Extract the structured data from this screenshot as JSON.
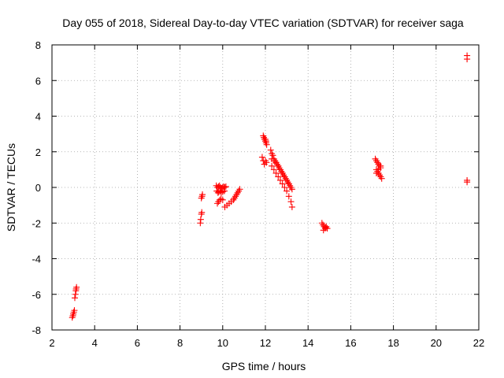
{
  "chart_data": {
    "type": "scatter",
    "title": "Day 055 of 2018, Sidereal Day-to-day VTEC variation (SDTVAR) for receiver saga",
    "xlabel": "GPS time / hours",
    "ylabel": "SDTVAR / TECUs",
    "xlim": [
      2,
      22
    ],
    "ylim": [
      -8,
      8
    ],
    "xticks": [
      2,
      4,
      6,
      8,
      10,
      12,
      14,
      16,
      18,
      20,
      22
    ],
    "yticks": [
      -8,
      -6,
      -4,
      -2,
      0,
      2,
      4,
      6,
      8
    ],
    "grid": true,
    "marker": "+",
    "color": "#ff0000",
    "x": [
      2.95,
      2.98,
      3.0,
      3.02,
      3.05,
      3.07,
      3.1,
      3.12,
      3.13,
      3.15,
      8.95,
      8.97,
      9.0,
      9.02,
      9.03,
      9.0,
      9.05,
      9.7,
      9.75,
      9.8,
      9.85,
      9.9,
      9.95,
      10.0,
      10.05,
      10.1,
      10.15,
      9.72,
      9.78,
      9.82,
      9.88,
      9.93,
      10.0,
      10.08,
      9.75,
      9.8,
      9.86,
      9.92,
      10.0,
      10.1,
      10.2,
      10.3,
      10.4,
      10.5,
      10.55,
      10.6,
      10.65,
      10.7,
      10.75,
      10.8,
      11.9,
      11.93,
      11.96,
      12.0,
      12.03,
      12.06,
      12.0,
      12.03,
      11.85,
      11.9,
      11.95,
      12.0,
      12.05,
      12.25,
      12.3,
      12.35,
      12.4,
      12.45,
      12.5,
      12.55,
      12.6,
      12.65,
      12.7,
      12.75,
      12.8,
      12.85,
      12.9,
      12.95,
      13.0,
      13.05,
      13.1,
      13.15,
      13.2,
      12.3,
      12.4,
      12.5,
      12.6,
      12.7,
      12.8,
      12.9,
      13.0,
      13.1,
      13.2,
      13.25,
      12.3,
      12.4,
      12.5,
      12.6,
      12.7,
      12.8,
      12.9,
      13.0,
      13.1,
      13.2,
      13.25,
      14.65,
      14.7,
      14.75,
      14.8,
      14.85,
      14.9,
      14.72,
      14.82,
      17.15,
      17.2,
      17.25,
      17.3,
      17.35,
      17.4,
      17.2,
      17.25,
      17.3,
      17.35,
      17.4,
      17.45,
      17.2,
      17.3,
      17.4,
      21.45,
      21.45,
      21.45,
      21.45
    ],
    "y": [
      -7.3,
      -7.2,
      -7.1,
      -7.0,
      -6.9,
      -6.2,
      -6.0,
      -5.8,
      -5.7,
      -5.6,
      -2.0,
      -1.8,
      -1.5,
      -1.4,
      -0.5,
      -0.6,
      -0.4,
      0.1,
      0.0,
      0.05,
      0.1,
      0.0,
      -0.05,
      0.0,
      0.05,
      0.0,
      0.05,
      -0.2,
      -0.3,
      -0.25,
      -0.2,
      -0.3,
      -0.25,
      -0.2,
      -0.9,
      -0.8,
      -0.7,
      -0.65,
      -0.7,
      -1.1,
      -1.0,
      -0.9,
      -0.8,
      -0.7,
      -0.6,
      -0.5,
      -0.4,
      -0.3,
      -0.2,
      -0.1,
      2.9,
      2.8,
      2.7,
      2.6,
      2.5,
      2.4,
      2.7,
      2.6,
      1.7,
      1.5,
      1.3,
      1.5,
      1.4,
      2.1,
      1.9,
      1.8,
      1.6,
      1.5,
      1.4,
      1.3,
      1.2,
      1.1,
      1.0,
      0.9,
      0.8,
      0.7,
      0.6,
      0.5,
      0.4,
      0.3,
      0.2,
      0.1,
      0.0,
      1.2,
      1.0,
      0.8,
      0.6,
      0.4,
      0.2,
      0.0,
      -0.2,
      -0.5,
      -0.8,
      -1.1,
      1.6,
      1.5,
      1.4,
      1.2,
      1.0,
      0.8,
      0.6,
      0.4,
      0.2,
      0.0,
      -0.1,
      -2.0,
      -2.1,
      -2.2,
      -2.3,
      -2.2,
      -2.3,
      -2.4,
      -2.25,
      1.6,
      1.5,
      1.4,
      1.3,
      1.2,
      1.1,
      1.0,
      0.9,
      0.8,
      0.7,
      0.6,
      0.5,
      0.8,
      1.0,
      1.2,
      7.4,
      7.2,
      0.4,
      0.3
    ]
  }
}
